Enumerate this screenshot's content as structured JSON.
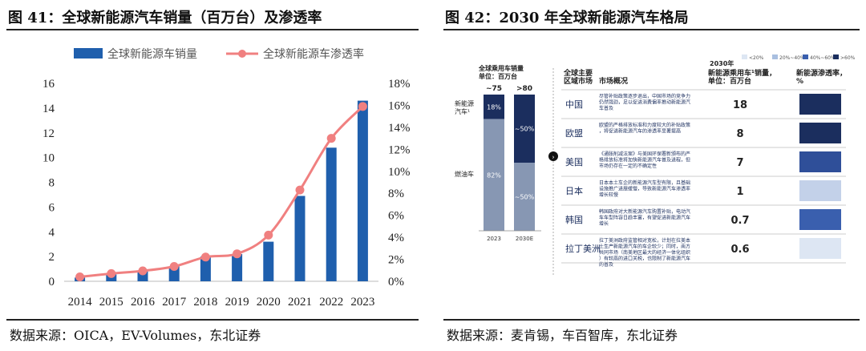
{
  "left": {
    "title": "图 41：全球新能源汽车销量（百万台）及渗透率",
    "source": "数据来源：OICA，EV-Volumes，东北证券"
  },
  "right": {
    "title": "图 42：2030 年全球新能源汽车格局",
    "source": "数据来源：麦肯锡，车百智库，东北证券",
    "stack": {
      "header": "全球乘用车销量\n单位：百万台",
      "legend_nev": "新能源汽车¹",
      "legend_ice": "燃油车",
      "categories": [
        "2023",
        "2030E"
      ],
      "totals": [
        "~75",
        ">80"
      ],
      "nev_share": [
        "18%",
        "~50%"
      ],
      "ice_share": [
        "82%",
        "~50%"
      ],
      "nev_values": [
        18,
        50
      ],
      "ice_values": [
        82,
        50
      ]
    },
    "table": {
      "year_label": "2030年",
      "legend": [
        "<20%",
        "20%~40%",
        "40%~60%",
        ">60%"
      ],
      "legend_colors": [
        "#dde6f3",
        "#a9bfe0",
        "#3a5fae",
        "#1b2e5e"
      ],
      "col_region": "全球主要\n区域市场",
      "col_overview": "市场概况",
      "col_sales": "新能源乘用车¹销量，\n单位：百万台",
      "col_pen": "新能源渗透率，\n%",
      "rows": [
        {
          "region": "中国",
          "overview": "尽管补贴政策逐步退出，中国市场的竞争力仍然强劲，足以促进消费偏率推动新能源汽车普及",
          "sales": "18",
          "pen_color": "#1b2e5e"
        },
        {
          "region": "欧盟",
          "overview": "欧盟的严格排放标准和力度较大的补贴政策，将促进新能源汽车的渗透率显著提高",
          "sales": "8",
          "pen_color": "#1b2e5e"
        },
        {
          "region": "美国",
          "overview": "《通胀削减法案》与美国环保署新颁布的严格排放标准将加快新能源汽车普及进程，但市场仍存在一定的不确定性",
          "sales": "7",
          "pen_color": "#2f4f99"
        },
        {
          "region": "日本",
          "overview": "日本本土车企的新能源汽车型有限，且基础设施推广进展缓慢，导致新能源汽车渗透率增长较慢",
          "sales": "1",
          "pen_color": "#c3d1e9"
        },
        {
          "region": "韩国",
          "overview": "韩国政府对大新能源汽车购置补贴，电动汽车车型阵容日趋丰富，有望促进新能源汽车增长",
          "sales": "0.7",
          "pen_color": "#3a5fae"
        },
        {
          "region": "拉丁美洲",
          "overview": "拉丁美洲政府监管相对宽松，计划在拉美本土生产新能源汽车的车企较少；同时，南方共同市场（南美地区最大的经济一体化组织）有较高的进口关税，也限制了新能源汽车的普及",
          "sales": "0.6",
          "pen_color": "#dde6f3"
        }
      ]
    }
  },
  "chart_data": {
    "type": "bar",
    "categories": [
      "2014",
      "2015",
      "2016",
      "2017",
      "2018",
      "2019",
      "2020",
      "2021",
      "2022",
      "2023"
    ],
    "series": [
      {
        "name": "全球新能源车销量",
        "type": "bar",
        "axis": "left",
        "values": [
          0.3,
          0.55,
          0.8,
          1.2,
          2.0,
          2.2,
          3.2,
          6.9,
          10.8,
          14.6
        ],
        "color": "#1f5fad"
      },
      {
        "name": "全球新能源车渗透率",
        "type": "line",
        "axis": "right",
        "values": [
          0.4,
          0.7,
          0.95,
          1.35,
          2.2,
          2.5,
          4.2,
          8.3,
          13.0,
          15.9
        ],
        "color": "#f08080"
      }
    ],
    "ylim": [
      0,
      16
    ],
    "yticks": [
      "0",
      "2",
      "4",
      "6",
      "8",
      "10",
      "12",
      "14",
      "16"
    ],
    "y2lim": [
      0,
      18
    ],
    "y2ticks": [
      "0%",
      "2%",
      "4%",
      "6%",
      "8%",
      "10%",
      "12%",
      "14%",
      "16%",
      "18%"
    ],
    "legend_position": "top-center",
    "grid": false
  }
}
